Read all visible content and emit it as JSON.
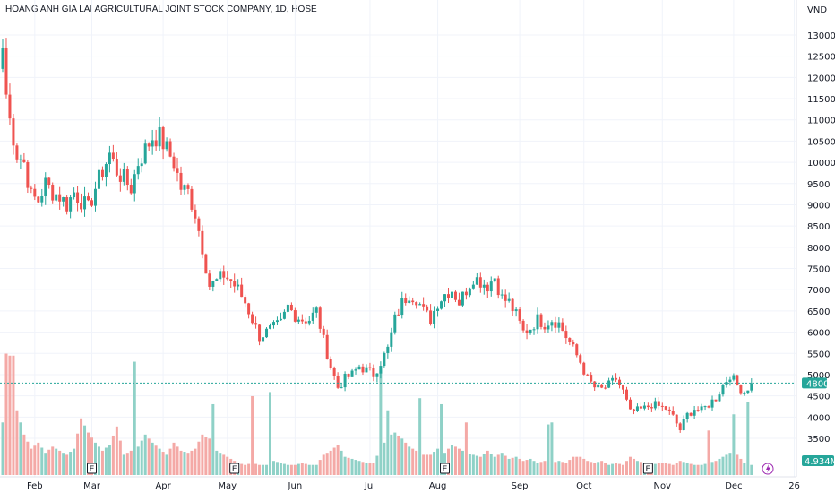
{
  "header": {
    "title": "HOANG ANH GIA LAI AGRICULTURAL JOINT STOCK COMPANY, 1D, HOSE"
  },
  "currency_label": "VND",
  "colors": {
    "up": "#26a69a",
    "down": "#ef5350",
    "up_volume": "#8fd1c7",
    "down_volume": "#f4a9a6",
    "grid": "#f0f3fa",
    "last_price_line": "#26a69a",
    "text": "#131722"
  },
  "chart_data": {
    "type": "candlestick",
    "title": "HOANG ANH GIA LAI AGRICULTURAL JOINT STOCK COMPANY, 1D, HOSE",
    "y_unit": "VND",
    "ylim": [
      3000,
      13500
    ],
    "y_ticks": [
      3500,
      4000,
      4500,
      5000,
      5500,
      6000,
      6500,
      7000,
      7500,
      8000,
      8500,
      9000,
      9500,
      10000,
      10500,
      11000,
      11500,
      12000,
      12500,
      13000
    ],
    "y_tick_labels": [
      "3500",
      "4000",
      "4500",
      "5000",
      "5500",
      "6000",
      "6500",
      "7000",
      "7500",
      "8000",
      "8500",
      "9000",
      "9500",
      "10000",
      "10500",
      "11000",
      "11500",
      "12000",
      "12500",
      "13000"
    ],
    "x_month_labels": [
      {
        "label": "Feb",
        "day": 9
      },
      {
        "label": "Mar",
        "day": 25
      },
      {
        "label": "Apr",
        "day": 45
      },
      {
        "label": "May",
        "day": 63
      },
      {
        "label": "Jun",
        "day": 82
      },
      {
        "label": "Jul",
        "day": 103
      },
      {
        "label": "Aug",
        "day": 122
      },
      {
        "label": "Sep",
        "day": 145
      },
      {
        "label": "Oct",
        "day": 163
      },
      {
        "label": "Nov",
        "day": 185
      },
      {
        "label": "Dec",
        "day": 205
      },
      {
        "label": "26",
        "day": 222
      }
    ],
    "last_price": 4800,
    "last_price_label": "4800",
    "last_volume_label": "4.934M",
    "event_markers": [
      {
        "label": "E",
        "day": 25
      },
      {
        "label": "E",
        "day": 65
      },
      {
        "label": "E",
        "day": 124
      },
      {
        "label": "E",
        "day": 181
      }
    ],
    "grid": true,
    "close_anchors": [
      [
        0,
        12200
      ],
      [
        2,
        11000
      ],
      [
        4,
        10200
      ],
      [
        6,
        10000
      ],
      [
        8,
        9200
      ],
      [
        10,
        9100
      ],
      [
        12,
        9500
      ],
      [
        14,
        9300
      ],
      [
        16,
        9200
      ],
      [
        18,
        9000
      ],
      [
        20,
        9300
      ],
      [
        22,
        9100
      ],
      [
        24,
        8900
      ],
      [
        26,
        9400
      ],
      [
        28,
        9800
      ],
      [
        30,
        10200
      ],
      [
        32,
        9800
      ],
      [
        34,
        9600
      ],
      [
        36,
        9400
      ],
      [
        38,
        10000
      ],
      [
        40,
        10300
      ],
      [
        42,
        10600
      ],
      [
        44,
        10600
      ],
      [
        46,
        10300
      ],
      [
        48,
        10000
      ],
      [
        50,
        9400
      ],
      [
        52,
        9300
      ],
      [
        54,
        8800
      ],
      [
        56,
        8000
      ],
      [
        58,
        7100
      ],
      [
        60,
        7200
      ],
      [
        62,
        7350
      ],
      [
        64,
        7200
      ],
      [
        66,
        7000
      ],
      [
        68,
        6700
      ],
      [
        70,
        6300
      ],
      [
        72,
        5900
      ],
      [
        74,
        6000
      ],
      [
        76,
        6100
      ],
      [
        78,
        6200
      ],
      [
        80,
        6600
      ],
      [
        82,
        6400
      ],
      [
        84,
        6300
      ],
      [
        86,
        6300
      ],
      [
        88,
        6500
      ],
      [
        90,
        5800
      ],
      [
        92,
        5200
      ],
      [
        94,
        4700
      ],
      [
        96,
        4900
      ],
      [
        98,
        5000
      ],
      [
        100,
        5200
      ],
      [
        102,
        5100
      ],
      [
        104,
        5000
      ],
      [
        106,
        5300
      ],
      [
        108,
        5600
      ],
      [
        110,
        6300
      ],
      [
        112,
        6700
      ],
      [
        114,
        6900
      ],
      [
        116,
        6800
      ],
      [
        118,
        6500
      ],
      [
        120,
        6300
      ],
      [
        122,
        6700
      ],
      [
        124,
        6900
      ],
      [
        126,
        7000
      ],
      [
        128,
        6700
      ],
      [
        130,
        7000
      ],
      [
        132,
        7300
      ],
      [
        134,
        7200
      ],
      [
        136,
        7100
      ],
      [
        138,
        7300
      ],
      [
        140,
        6800
      ],
      [
        142,
        6700
      ],
      [
        144,
        6400
      ],
      [
        146,
        6000
      ],
      [
        148,
        6100
      ],
      [
        150,
        6300
      ],
      [
        152,
        6200
      ],
      [
        154,
        6300
      ],
      [
        156,
        6200
      ],
      [
        158,
        5900
      ],
      [
        160,
        5600
      ],
      [
        162,
        5300
      ],
      [
        164,
        4900
      ],
      [
        166,
        4700
      ],
      [
        168,
        4650
      ],
      [
        170,
        4750
      ],
      [
        172,
        4900
      ],
      [
        174,
        4600
      ],
      [
        176,
        4100
      ],
      [
        178,
        4150
      ],
      [
        180,
        4200
      ],
      [
        182,
        4300
      ],
      [
        184,
        4250
      ],
      [
        186,
        4200
      ],
      [
        188,
        4000
      ],
      [
        190,
        3700
      ],
      [
        192,
        4050
      ],
      [
        194,
        4200
      ],
      [
        196,
        4150
      ],
      [
        198,
        4300
      ],
      [
        200,
        4450
      ],
      [
        202,
        4750
      ],
      [
        204,
        5000
      ],
      [
        206,
        4750
      ],
      [
        208,
        4600
      ],
      [
        210,
        4800
      ]
    ],
    "volume_anchors": [
      [
        0,
        2.6
      ],
      [
        2,
        4.2
      ],
      [
        4,
        3.2
      ],
      [
        6,
        2.0
      ],
      [
        8,
        1.3
      ],
      [
        10,
        1.6
      ],
      [
        12,
        1.1
      ],
      [
        14,
        1.4
      ],
      [
        16,
        1.2
      ],
      [
        18,
        1.0
      ],
      [
        20,
        1.3
      ],
      [
        22,
        2.8
      ],
      [
        24,
        2.1
      ],
      [
        26,
        1.6
      ],
      [
        28,
        1.2
      ],
      [
        30,
        1.5
      ],
      [
        32,
        2.4
      ],
      [
        34,
        1.0
      ],
      [
        36,
        1.2
      ],
      [
        38,
        1.4
      ],
      [
        40,
        2.0
      ],
      [
        42,
        1.6
      ],
      [
        44,
        1.3
      ],
      [
        46,
        1.0
      ],
      [
        48,
        1.6
      ],
      [
        50,
        1.2
      ],
      [
        52,
        1.1
      ],
      [
        54,
        1.3
      ],
      [
        56,
        2.0
      ],
      [
        58,
        1.8
      ],
      [
        60,
        1.2
      ],
      [
        62,
        1.0
      ],
      [
        64,
        0.8
      ],
      [
        66,
        0.6
      ],
      [
        68,
        0.5
      ],
      [
        70,
        0.6
      ],
      [
        72,
        0.5
      ],
      [
        74,
        0.5
      ],
      [
        76,
        0.7
      ],
      [
        78,
        0.6
      ],
      [
        80,
        0.5
      ],
      [
        82,
        0.5
      ],
      [
        84,
        0.6
      ],
      [
        86,
        0.5
      ],
      [
        88,
        0.5
      ],
      [
        90,
        1.0
      ],
      [
        92,
        1.2
      ],
      [
        94,
        1.5
      ],
      [
        96,
        0.9
      ],
      [
        98,
        0.8
      ],
      [
        100,
        0.7
      ],
      [
        102,
        0.6
      ],
      [
        104,
        0.6
      ],
      [
        106,
        1.3
      ],
      [
        108,
        1.9
      ],
      [
        110,
        2.1
      ],
      [
        112,
        1.8
      ],
      [
        114,
        1.4
      ],
      [
        116,
        1.2
      ],
      [
        118,
        1.0
      ],
      [
        120,
        1.0
      ],
      [
        122,
        1.3
      ],
      [
        124,
        1.1
      ],
      [
        126,
        1.5
      ],
      [
        128,
        1.3
      ],
      [
        130,
        1.1
      ],
      [
        132,
        1.0
      ],
      [
        134,
        0.9
      ],
      [
        136,
        1.2
      ],
      [
        138,
        0.9
      ],
      [
        140,
        1.1
      ],
      [
        142,
        0.8
      ],
      [
        144,
        0.9
      ],
      [
        146,
        0.7
      ],
      [
        148,
        0.8
      ],
      [
        150,
        0.6
      ],
      [
        152,
        0.7
      ],
      [
        154,
        0.6
      ],
      [
        156,
        0.7
      ],
      [
        158,
        0.6
      ],
      [
        160,
        0.9
      ],
      [
        162,
        0.9
      ],
      [
        164,
        0.7
      ],
      [
        166,
        0.6
      ],
      [
        168,
        0.7
      ],
      [
        170,
        0.5
      ],
      [
        172,
        0.6
      ],
      [
        174,
        0.5
      ],
      [
        176,
        0.9
      ],
      [
        178,
        0.7
      ],
      [
        180,
        0.6
      ],
      [
        182,
        0.5
      ],
      [
        184,
        0.6
      ],
      [
        186,
        0.6
      ],
      [
        188,
        0.5
      ],
      [
        190,
        0.7
      ],
      [
        192,
        0.6
      ],
      [
        194,
        0.5
      ],
      [
        196,
        0.5
      ],
      [
        198,
        0.6
      ],
      [
        200,
        0.7
      ],
      [
        202,
        0.9
      ],
      [
        204,
        1.1
      ],
      [
        206,
        1.0
      ],
      [
        208,
        0.6
      ],
      [
        210,
        0.5
      ]
    ],
    "volume_spikes": [
      [
        1,
        6.0
      ],
      [
        2,
        5.9
      ],
      [
        3,
        5.9
      ],
      [
        37,
        5.6
      ],
      [
        59,
        3.5
      ],
      [
        70,
        3.9
      ],
      [
        75,
        4.1
      ],
      [
        106,
        5.2
      ],
      [
        108,
        3.2
      ],
      [
        117,
        3.8
      ],
      [
        123,
        3.5
      ],
      [
        130,
        2.6
      ],
      [
        153,
        2.5
      ],
      [
        154,
        2.6
      ],
      [
        198,
        2.2
      ],
      [
        205,
        3.0
      ],
      [
        209,
        3.6
      ]
    ],
    "volume_max": 6.2
  }
}
